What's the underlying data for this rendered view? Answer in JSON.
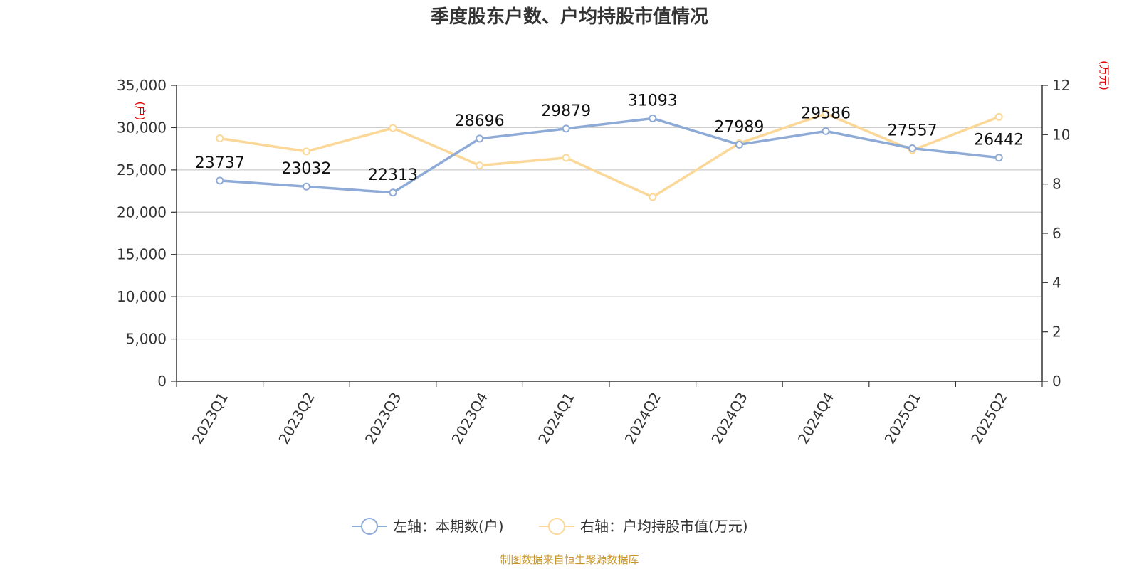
{
  "chart_data": {
    "type": "line",
    "title": "季度股东户数、户均持股市值情况",
    "categories": [
      "2023Q1",
      "2023Q2",
      "2023Q3",
      "2023Q4",
      "2024Q1",
      "2024Q2",
      "2024Q3",
      "2024Q4",
      "2025Q1",
      "2025Q2"
    ],
    "left_axis": {
      "unit": "(户)",
      "ylim": [
        0,
        35000
      ],
      "ticks": [
        "0",
        "5,000",
        "10,000",
        "15,000",
        "20,000",
        "25,000",
        "30,000",
        "35,000"
      ]
    },
    "right_axis": {
      "unit": "(万元)",
      "ylim": [
        0,
        12
      ],
      "ticks": [
        "0",
        "2",
        "4",
        "6",
        "8",
        "10",
        "12"
      ]
    },
    "series": [
      {
        "name": "左轴：本期数(户)",
        "axis": "left",
        "color": "#8eaad6",
        "values": [
          23737,
          23032,
          22313,
          28696,
          29879,
          31093,
          27989,
          29586,
          27557,
          26442
        ],
        "labels": [
          "23737",
          "23032",
          "22313",
          "28696",
          "29879",
          "31093",
          "27989",
          "29586",
          "27557",
          "26442"
        ]
      },
      {
        "name": "右轴：户均持股市值(万元)",
        "axis": "right",
        "color": "#fbd898",
        "values": [
          9.85,
          9.32,
          10.27,
          8.75,
          9.06,
          7.47,
          9.65,
          10.85,
          9.37,
          10.72
        ]
      }
    ],
    "grid": true,
    "legend_position": "bottom-center",
    "source": "制图数据来自恒生聚源数据库"
  }
}
